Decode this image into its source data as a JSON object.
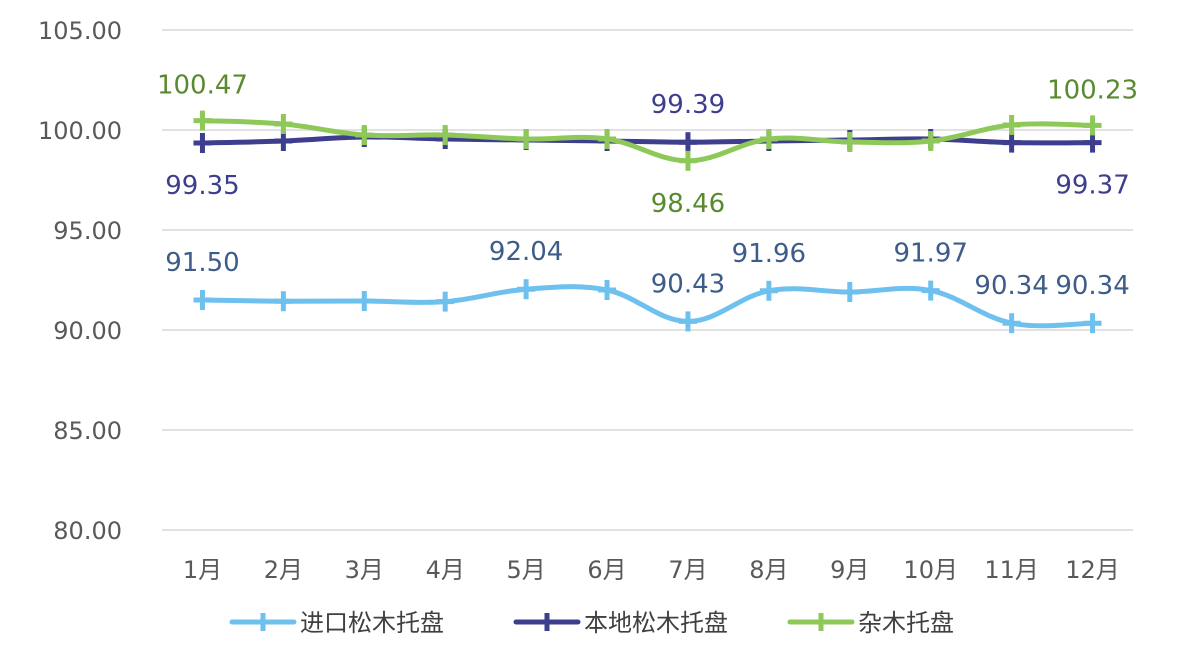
{
  "chart_data": {
    "type": "line",
    "title": "",
    "xlabel": "",
    "ylabel": "",
    "categories": [
      "1月",
      "2月",
      "3月",
      "4月",
      "5月",
      "6月",
      "7月",
      "8月",
      "9月",
      "10月",
      "11月",
      "12月"
    ],
    "ylim": [
      80,
      105
    ],
    "yticks": [
      "80.00",
      "85.00",
      "90.00",
      "95.00",
      "100.00",
      "105.00"
    ],
    "grid": true,
    "legend_position": "bottom",
    "series": [
      {
        "name": "进口松木托盘",
        "color": "#6EC1EE",
        "label_color": "#3E5C8A",
        "values": [
          91.5,
          91.44,
          91.45,
          91.42,
          92.04,
          92.0,
          90.43,
          91.96,
          91.9,
          91.97,
          90.34,
          90.34
        ],
        "labels": [
          "91.50",
          "",
          "",
          "",
          "92.04",
          "",
          "90.43",
          "91.96",
          "",
          "91.97",
          "90.34",
          "90.34"
        ]
      },
      {
        "name": "本地松木托盘",
        "color": "#3E3E8E",
        "label_color": "#3E3E8E",
        "values": [
          99.35,
          99.45,
          99.65,
          99.55,
          99.5,
          99.45,
          99.39,
          99.45,
          99.5,
          99.55,
          99.37,
          99.37
        ],
        "labels": [
          "99.35",
          "",
          "",
          "",
          "",
          "",
          "99.39",
          "",
          "",
          "",
          "",
          "99.37"
        ]
      },
      {
        "name": "杂木托盘",
        "color": "#8DC858",
        "label_color": "#5A8A30",
        "values": [
          100.47,
          100.3,
          99.75,
          99.75,
          99.55,
          99.55,
          98.46,
          99.55,
          99.4,
          99.45,
          100.25,
          100.23
        ],
        "labels": [
          "100.47",
          "",
          "",
          "",
          "",
          "",
          "98.46",
          "",
          "",
          "",
          "",
          "100.23"
        ]
      }
    ]
  }
}
